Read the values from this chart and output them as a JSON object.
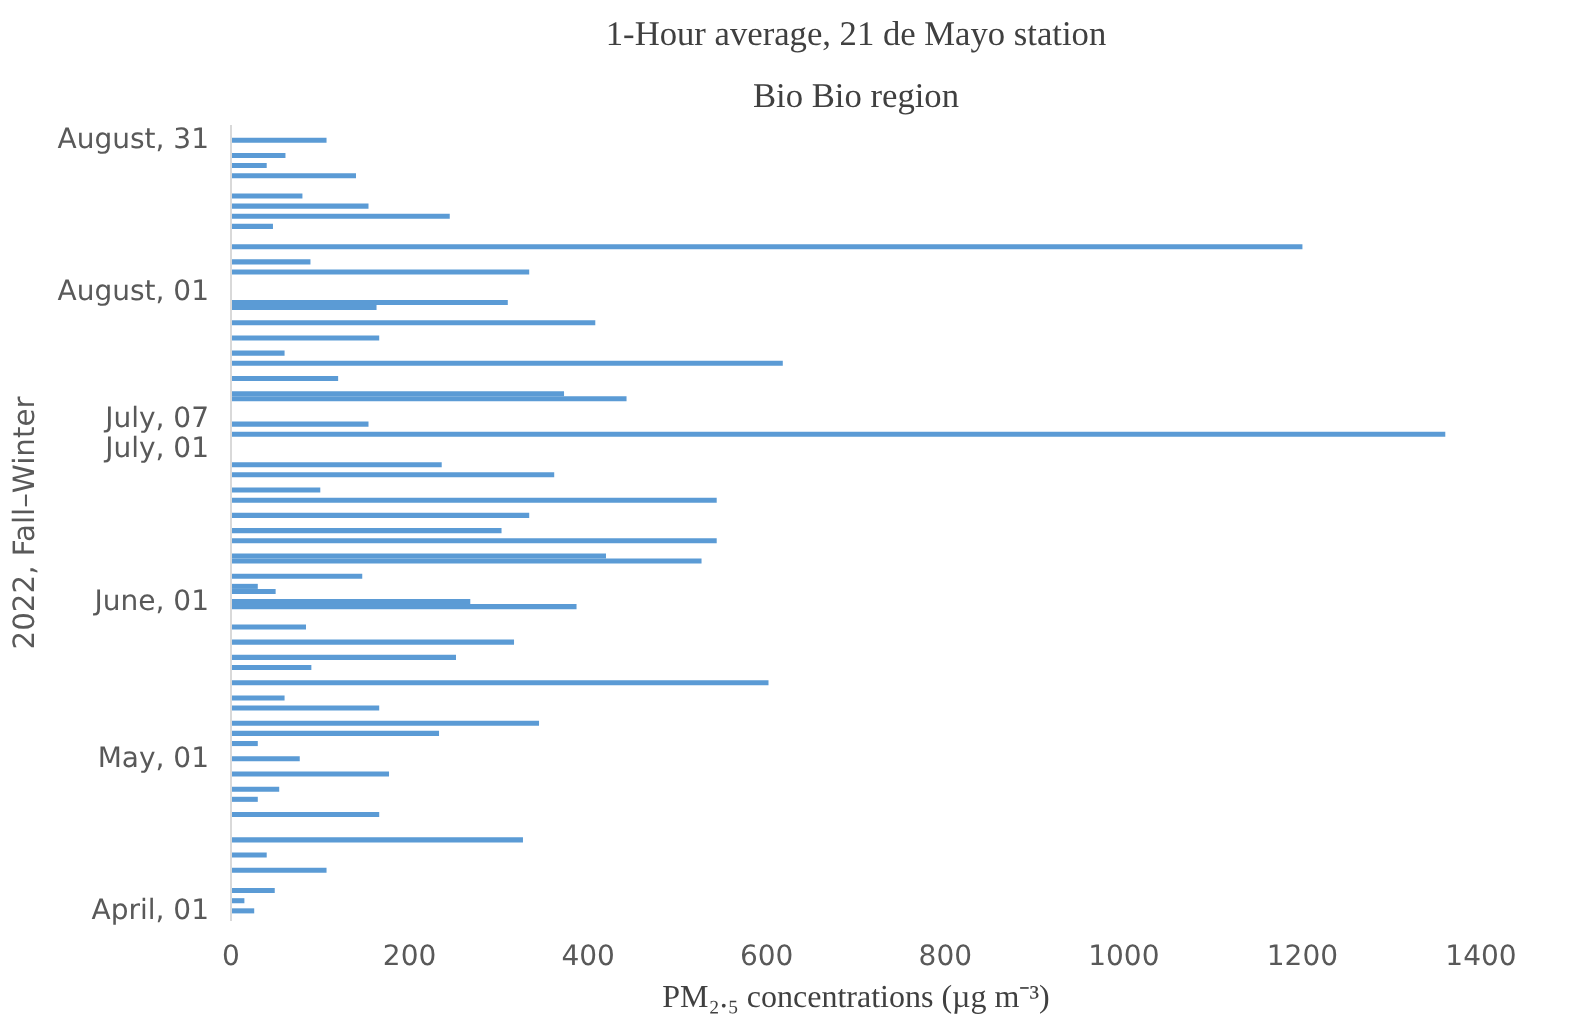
{
  "chart_data": {
    "type": "bar",
    "orientation": "horizontal",
    "title": "1-Hour average, 21 de Mayo station",
    "subtitle": "Bio Bio region",
    "xlabel": "PM₂.₅ concentrations (µg m⁻³)",
    "ylabel": "2022, Fall–Winter",
    "x": [
      "2022-04-01",
      "2022-04-03",
      "2022-04-05",
      "2022-04-09",
      "2022-04-12",
      "2022-04-15",
      "2022-04-20",
      "2022-04-23",
      "2022-04-25",
      "2022-04-28",
      "2022-05-01",
      "2022-05-04",
      "2022-05-06",
      "2022-05-08",
      "2022-05-11",
      "2022-05-13",
      "2022-05-16",
      "2022-05-19",
      "2022-05-21",
      "2022-05-24",
      "2022-05-27",
      "2022-05-31",
      "2022-06-01",
      "2022-06-03",
      "2022-06-04",
      "2022-06-06",
      "2022-06-09",
      "2022-06-10",
      "2022-06-13",
      "2022-06-15",
      "2022-06-18",
      "2022-06-21",
      "2022-06-23",
      "2022-06-26",
      "2022-06-28",
      "2022-07-04",
      "2022-07-06",
      "2022-07-11",
      "2022-07-12",
      "2022-07-15",
      "2022-07-18",
      "2022-07-20",
      "2022-07-23",
      "2022-07-26",
      "2022-07-29",
      "2022-07-30",
      "2022-08-05",
      "2022-08-07",
      "2022-08-10",
      "2022-08-14",
      "2022-08-16",
      "2022-08-18",
      "2022-08-20",
      "2022-08-24",
      "2022-08-26",
      "2022-08-28",
      "2022-08-31"
    ],
    "values": [
      26,
      15,
      49,
      107,
      40,
      327,
      166,
      30,
      54,
      177,
      77,
      30,
      233,
      345,
      166,
      60,
      602,
      90,
      252,
      317,
      84,
      387,
      268,
      50,
      30,
      147,
      527,
      420,
      544,
      303,
      334,
      544,
      100,
      362,
      236,
      1360,
      154,
      443,
      373,
      120,
      618,
      60,
      166,
      408,
      163,
      310,
      334,
      89,
      1200,
      47,
      245,
      154,
      80,
      140,
      40,
      61,
      107
    ],
    "color": "#5b9bd5",
    "xlim": [
      0,
      1400
    ],
    "xticks": [
      0,
      200,
      400,
      600,
      800,
      1000,
      1200,
      1400
    ],
    "ylim": [
      "2022-03-30",
      "2022-09-03"
    ],
    "yticks": [
      {
        "value": "2022-04-01",
        "label": "April, 01"
      },
      {
        "value": "2022-05-01",
        "label": "May, 01"
      },
      {
        "value": "2022-06-01",
        "label": "June, 01"
      },
      {
        "value": "2022-07-01",
        "label": "July, 01"
      },
      {
        "value": "2022-07-07",
        "label": "July, 07"
      },
      {
        "value": "2022-08-01",
        "label": "August, 01"
      },
      {
        "value": "2022-08-31",
        "label": "August, 31"
      }
    ],
    "grid": false
  }
}
